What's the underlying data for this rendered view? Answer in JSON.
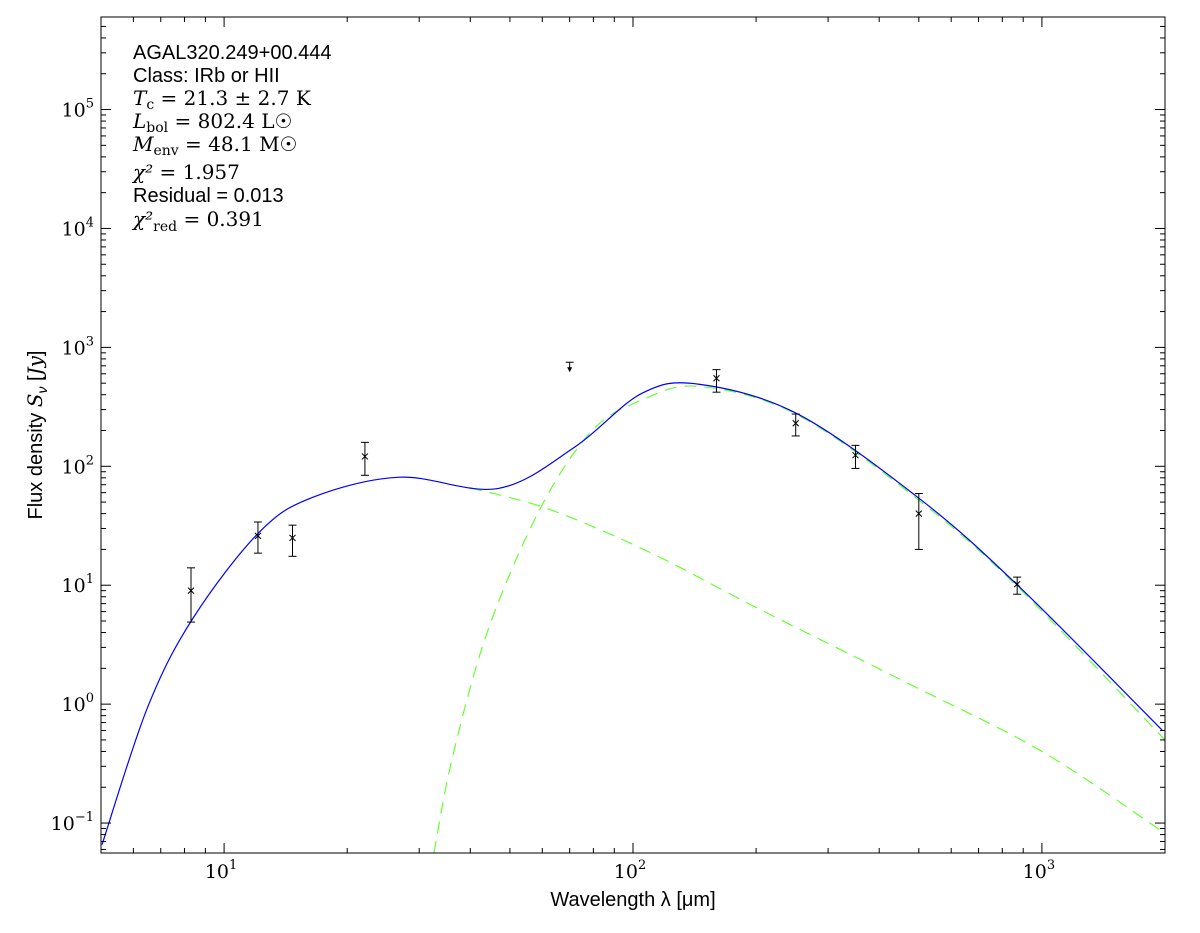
{
  "chart_data": {
    "type": "line",
    "title": "",
    "xlabel": "Wavelength λ [μm]",
    "ylabel": "Flux density Sν [Jy]",
    "xscale": "log",
    "yscale": "log",
    "xlim": [
      5,
      2000
    ],
    "ylim": [
      0.056,
      600000
    ],
    "grid": false,
    "x_ticks": [
      {
        "base": "10",
        "exp": "1",
        "value": 10
      },
      {
        "base": "10",
        "exp": "2",
        "value": 100
      },
      {
        "base": "10",
        "exp": "3",
        "value": 1000
      }
    ],
    "y_ticks": [
      {
        "base": "10",
        "exp": "−1",
        "value": 0.1
      },
      {
        "base": "10",
        "exp": "0",
        "value": 1
      },
      {
        "base": "10",
        "exp": "1",
        "value": 10
      },
      {
        "base": "10",
        "exp": "2",
        "value": 100
      },
      {
        "base": "10",
        "exp": "3",
        "value": 1000
      },
      {
        "base": "10",
        "exp": "4",
        "value": 10000
      },
      {
        "base": "10",
        "exp": "5",
        "value": 100000
      }
    ],
    "annotations": {
      "source": "AGAL320.249+00.444",
      "class": "Class: IRb or HII",
      "tc": {
        "sym": "T",
        "sub": "c",
        "text": " = 21.3 ± 2.7 K"
      },
      "lbol": {
        "sym": "L",
        "sub": "bol",
        "text": " = 802.4 L☉"
      },
      "menv": {
        "sym": "M",
        "sub": "env",
        "text": " = 48.1 M☉"
      },
      "chi2": {
        "sym": "χ²",
        "text": " = 1.957"
      },
      "residual": "Residual = 0.013",
      "chi2red": {
        "sym": "χ²",
        "sub": "red",
        "text": " = 0.391"
      }
    },
    "series": [
      {
        "kind": "total-fit",
        "color": "#0000ff",
        "style": "solid",
        "points": [
          [
            5.03,
            0.066
          ],
          [
            6.5,
            0.94
          ],
          [
            8.4,
            5.3
          ],
          [
            12.2,
            28
          ],
          [
            16.5,
            55
          ],
          [
            26.9,
            81
          ],
          [
            46.7,
            65
          ],
          [
            72,
            145
          ],
          [
            105,
            410
          ],
          [
            145,
            490
          ],
          [
            253,
            275
          ],
          [
            507,
            52
          ],
          [
            883,
            9.6
          ],
          [
            1972,
            0.6
          ]
        ]
      },
      {
        "kind": "warm-component",
        "color": "#66ff33",
        "style": "dashed",
        "points": [
          [
            40,
            66
          ],
          [
            63,
            43
          ],
          [
            111,
            18.6
          ],
          [
            200,
            6.5
          ],
          [
            470,
            1.5
          ],
          [
            1000,
            0.4
          ],
          [
            1950,
            0.087
          ]
        ]
      },
      {
        "kind": "cold-component",
        "color": "#66ff33",
        "style": "dashed",
        "points": [
          [
            32.6,
            0.056
          ],
          [
            36.2,
            0.36
          ],
          [
            44.2,
            4.2
          ],
          [
            59.5,
            45
          ],
          [
            79.5,
            200
          ],
          [
            105,
            360
          ],
          [
            145,
            470
          ],
          [
            253,
            270
          ],
          [
            507,
            50
          ],
          [
            883,
            9.3
          ],
          [
            2000,
            0.5
          ]
        ]
      }
    ],
    "measurements": [
      {
        "x": 8.3,
        "y": 9.0,
        "ylo": 4.9,
        "yhi": 14
      },
      {
        "x": 12.1,
        "y": 26,
        "ylo": 18.6,
        "yhi": 34
      },
      {
        "x": 14.7,
        "y": 25,
        "ylo": 17.5,
        "yhi": 32
      },
      {
        "x": 22.1,
        "y": 121,
        "ylo": 84,
        "yhi": 159
      },
      {
        "x": 160,
        "y": 550,
        "ylo": 420,
        "yhi": 650
      },
      {
        "x": 250,
        "y": 230,
        "ylo": 180,
        "yhi": 275
      },
      {
        "x": 350,
        "y": 124,
        "ylo": 96,
        "yhi": 150
      },
      {
        "x": 500,
        "y": 40,
        "ylo": 20,
        "yhi": 59
      },
      {
        "x": 870,
        "y": 10.2,
        "ylo": 8.4,
        "yhi": 11.7
      }
    ],
    "upper_limits": [
      {
        "x": 70,
        "y": 750
      }
    ]
  }
}
